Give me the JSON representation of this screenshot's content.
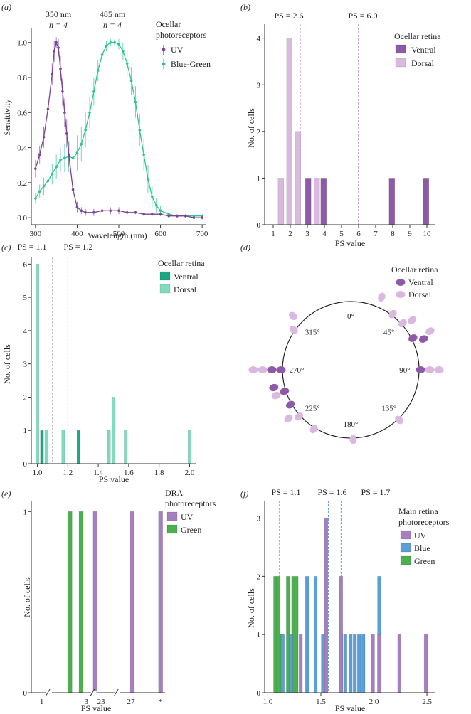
{
  "colors": {
    "uv": "#7b4397",
    "uv_light": "#a67fc0",
    "blue_green": "#2ec495",
    "dorsal_purple": "#dab8df",
    "ventral_purple": "#8e5aa8",
    "teal_dark": "#1aa883",
    "teal_light": "#7fdcbd",
    "blue": "#5b9fd8",
    "green": "#4caf50",
    "guide": "#9a9a9a"
  },
  "chart_data": [
    {
      "id": "a",
      "panel_label": "(a)",
      "type": "line",
      "title": "",
      "xlabel": "Wavelength (nm)",
      "ylabel": "Sensitivity",
      "xlim": [
        290,
        710
      ],
      "ylim": [
        -0.04,
        1.08
      ],
      "xticks": [
        300,
        400,
        500,
        600,
        700
      ],
      "yticks": [
        0,
        0.2,
        0.4,
        0.6,
        0.8,
        1.0
      ],
      "ytick_labels": [
        "0.0",
        "0.2",
        "0.4",
        "0.6",
        "0.8",
        "1.0"
      ],
      "peak_labels": [
        {
          "nm": "350 nm",
          "n": "n = 4",
          "x": 350
        },
        {
          "nm": "485 nm",
          "n": "n = 4",
          "x": 485
        }
      ],
      "legend_title": [
        "Ocellar",
        "photoreceptors"
      ],
      "series": [
        {
          "name": "UV",
          "color_key": "uv",
          "x": [
            300,
            310,
            320,
            330,
            340,
            345,
            350,
            355,
            360,
            365,
            370,
            375,
            380,
            390,
            400,
            410,
            420,
            440,
            460,
            480,
            500,
            520,
            540,
            560,
            580,
            600,
            620,
            640,
            660,
            680,
            700
          ],
          "y": [
            0.28,
            0.36,
            0.46,
            0.62,
            0.82,
            0.95,
            1.0,
            0.97,
            0.85,
            0.72,
            0.6,
            0.48,
            0.36,
            0.16,
            0.06,
            0.04,
            0.03,
            0.03,
            0.04,
            0.04,
            0.04,
            0.03,
            0.03,
            0.02,
            0.02,
            0.02,
            0.01,
            0.01,
            0.01,
            0.0,
            0.0
          ],
          "err": [
            0.05,
            0.05,
            0.06,
            0.07,
            0.06,
            0.06,
            0.03,
            0.05,
            0.07,
            0.08,
            0.08,
            0.08,
            0.07,
            0.06,
            0.03,
            0.02,
            0.02,
            0.02,
            0.02,
            0.02,
            0.02,
            0.02,
            0.01,
            0.01,
            0.01,
            0.01,
            0.01,
            0.01,
            0.01,
            0.01,
            0.01
          ]
        },
        {
          "name": "Blue-Green",
          "color_key": "blue_green",
          "x": [
            300,
            310,
            320,
            330,
            340,
            350,
            360,
            370,
            380,
            390,
            400,
            410,
            420,
            430,
            440,
            450,
            460,
            470,
            480,
            490,
            500,
            510,
            520,
            530,
            540,
            550,
            560,
            570,
            580,
            590,
            600,
            620,
            640,
            660,
            680,
            700
          ],
          "y": [
            0.11,
            0.15,
            0.18,
            0.21,
            0.25,
            0.29,
            0.33,
            0.34,
            0.35,
            0.34,
            0.37,
            0.42,
            0.5,
            0.6,
            0.72,
            0.84,
            0.93,
            0.98,
            1.0,
            1.0,
            0.99,
            0.95,
            0.88,
            0.78,
            0.66,
            0.5,
            0.36,
            0.22,
            0.12,
            0.07,
            0.04,
            0.02,
            0.01,
            0.01,
            0.01,
            0.01
          ],
          "err": [
            0.03,
            0.04,
            0.05,
            0.05,
            0.06,
            0.07,
            0.07,
            0.08,
            0.09,
            0.09,
            0.1,
            0.1,
            0.1,
            0.09,
            0.08,
            0.06,
            0.04,
            0.03,
            0.02,
            0.02,
            0.03,
            0.05,
            0.07,
            0.08,
            0.09,
            0.09,
            0.09,
            0.08,
            0.06,
            0.04,
            0.03,
            0.02,
            0.01,
            0.01,
            0.01,
            0.01
          ]
        }
      ]
    },
    {
      "id": "b",
      "panel_label": "(b)",
      "type": "bar",
      "xlabel": "PS value",
      "ylabel": "No. of cells",
      "xlim": [
        0.5,
        10.5
      ],
      "ylim": [
        0,
        4.3
      ],
      "xticks": [
        1,
        2,
        3,
        4,
        5,
        6,
        7,
        8,
        9,
        10
      ],
      "yticks": [
        0,
        1,
        2,
        3,
        4
      ],
      "bar_width": 0.33,
      "legend_title": [
        "Ocellar retina"
      ],
      "series": [
        {
          "name": "Ventral",
          "color_key": "ventral_purple",
          "x": [
            3.05,
            3.95,
            7.95,
            9.95
          ],
          "values": [
            1,
            1,
            1,
            1
          ]
        },
        {
          "name": "Dorsal",
          "color_key": "dorsal_purple",
          "x": [
            1.45,
            1.95,
            2.45,
            3.55
          ],
          "values": [
            1,
            4,
            2,
            1
          ]
        }
      ],
      "guides": [
        {
          "label": "PS = 2.6",
          "x": 2.6,
          "color_key": "dorsal_purple"
        },
        {
          "label": "PS = 6.0",
          "x": 6.0,
          "color_key": "ventral_purple"
        }
      ]
    },
    {
      "id": "c",
      "panel_label": "(c)",
      "type": "bar",
      "xlabel": "PS value",
      "ylabel": "No. of cells",
      "xlim": [
        0.96,
        2.04
      ],
      "ylim": [
        0,
        6.2
      ],
      "xticks": [
        1.0,
        1.2,
        1.4,
        1.6,
        1.8,
        2.0
      ],
      "xtick_labels": [
        "1.0",
        "1.2",
        "1.4",
        "1.6",
        "1.8",
        "2.0"
      ],
      "yticks": [
        0,
        1,
        2,
        3,
        4,
        5,
        6
      ],
      "bar_width": 0.02,
      "legend_title": [
        "Ocellar retina"
      ],
      "series": [
        {
          "name": "Ventral",
          "color_key": "teal_dark",
          "x": [
            1.03,
            1.27
          ],
          "values": [
            1,
            1
          ]
        },
        {
          "name": "Dorsal",
          "color_key": "teal_light",
          "x": [
            1.0,
            1.06,
            1.17,
            1.47,
            1.5,
            1.58,
            2.0
          ],
          "values": [
            6,
            1,
            1,
            1,
            2,
            1,
            1
          ]
        }
      ],
      "guides": [
        {
          "label": "PS = 1.1",
          "x": 1.1,
          "color_key": "guide"
        },
        {
          "label": "PS = 1.2",
          "x": 1.2,
          "color_key": "teal_light"
        }
      ]
    },
    {
      "id": "d",
      "panel_label": "(d)",
      "type": "scatter",
      "coordinate": "polar-angle",
      "angle_labels": [
        "0°",
        "45°",
        "90°",
        "135°",
        "180°",
        "225°",
        "270°",
        "315°"
      ],
      "angle_values": [
        0,
        45,
        90,
        135,
        180,
        225,
        270,
        315
      ],
      "legend_title": [
        "Ocellar retina"
      ],
      "series": [
        {
          "name": "Ventral",
          "color_key": "ventral_purple",
          "points": [
            {
              "angle": 63,
              "ring": 0
            },
            {
              "angle": 67,
              "ring": 1
            },
            {
              "angle": 90,
              "ring": 0
            },
            {
              "angle": 240,
              "ring": 0
            },
            {
              "angle": 252,
              "ring": 0
            },
            {
              "angle": 257,
              "ring": 1
            },
            {
              "angle": 270,
              "ring": 0
            },
            {
              "angle": 270,
              "ring": 1
            }
          ]
        },
        {
          "name": "Dorsal",
          "color_key": "dorsal_purple",
          "points": [
            {
              "angle": 23,
              "ring": 1
            },
            {
              "angle": 37,
              "ring": 0
            },
            {
              "angle": 48,
              "ring": 0
            },
            {
              "angle": 51,
              "ring": 1
            },
            {
              "angle": 64,
              "ring": 2
            },
            {
              "angle": 90,
              "ring": 1
            },
            {
              "angle": 90,
              "ring": 2
            },
            {
              "angle": 136,
              "ring": 0
            },
            {
              "angle": 178,
              "ring": 0
            },
            {
              "angle": 212,
              "ring": 0
            },
            {
              "angle": 228,
              "ring": 0
            },
            {
              "angle": 232,
              "ring": 1
            },
            {
              "angle": 251,
              "ring": 1
            },
            {
              "angle": 270,
              "ring": 2
            },
            {
              "angle": 270,
              "ring": 3
            },
            {
              "angle": 305,
              "ring": 0
            },
            {
              "angle": 313,
              "ring": 1
            }
          ]
        }
      ]
    },
    {
      "id": "e",
      "panel_label": "(e)",
      "type": "bar",
      "xlabel": "PS value",
      "ylabel": "No. of cells",
      "ylim": [
        0,
        1.06
      ],
      "yticks": [
        0,
        1
      ],
      "tick_labels": [
        {
          "label": "1",
          "pos": 1.5
        },
        {
          "label": "3",
          "pos": 4.5
        },
        {
          "label": "23",
          "pos": 5.5
        },
        {
          "label": "27",
          "pos": 7.5
        },
        {
          "label": "*",
          "pos": 9.5
        }
      ],
      "axis_breaks": [
        2.0,
        5.0,
        6.6
      ],
      "xpos_range": [
        0.8,
        9.8
      ],
      "legend_title": [
        "DRA",
        "photoreceptors"
      ],
      "series": [
        {
          "name": "UV",
          "color_key": "uv_light",
          "pos": [
            5.1,
            7.6,
            9.5
          ],
          "values": [
            1,
            1,
            1
          ]
        },
        {
          "name": "Green",
          "color_key": "green",
          "pos": [
            3.4,
            4.15
          ],
          "values": [
            1,
            1
          ]
        }
      ],
      "bar_width": 0.28
    },
    {
      "id": "f",
      "panel_label": "(f)",
      "type": "bar",
      "xlabel": "PS value",
      "ylabel": "No. of cells",
      "xlim": [
        0.97,
        2.58
      ],
      "ylim": [
        0,
        3.3
      ],
      "xticks": [
        1.0,
        1.5,
        2.0,
        2.5
      ],
      "xtick_labels": [
        "1.0",
        "1.5",
        "2.0",
        "2.5"
      ],
      "yticks": [
        0,
        1,
        2,
        3
      ],
      "bar_width": 0.032,
      "legend_title": [
        "Main retina",
        "photoreceptors"
      ],
      "series": [
        {
          "name": "Green",
          "color_key": "green",
          "x": [
            1.07,
            1.1,
            1.13,
            1.19,
            1.24,
            1.27
          ],
          "values": [
            2,
            2,
            1,
            2,
            2,
            2
          ]
        },
        {
          "name": "Blue",
          "color_key": "blue",
          "x": [
            1.14,
            1.22,
            1.37,
            1.45,
            1.52,
            1.69,
            1.73,
            1.78,
            1.82,
            1.86,
            1.9,
            2.05
          ],
          "values": [
            1,
            1,
            2,
            2,
            1,
            1,
            1,
            1,
            1,
            1,
            1,
            2
          ]
        },
        {
          "name": "UV",
          "color_key": "uv_light",
          "x": [
            1.31,
            1.55,
            1.69,
            1.99,
            2.05,
            2.24,
            2.49
          ],
          "values": [
            1,
            3,
            2,
            1,
            1,
            1,
            1
          ]
        }
      ],
      "guides": [
        {
          "label": "PS = 1.1",
          "x": 1.11,
          "color_key": "green"
        },
        {
          "label": "PS = 1.6",
          "x": 1.57,
          "color_key": "blue"
        },
        {
          "label": "PS = 1.7",
          "x": 1.69,
          "color_key": "blue"
        }
      ]
    }
  ]
}
